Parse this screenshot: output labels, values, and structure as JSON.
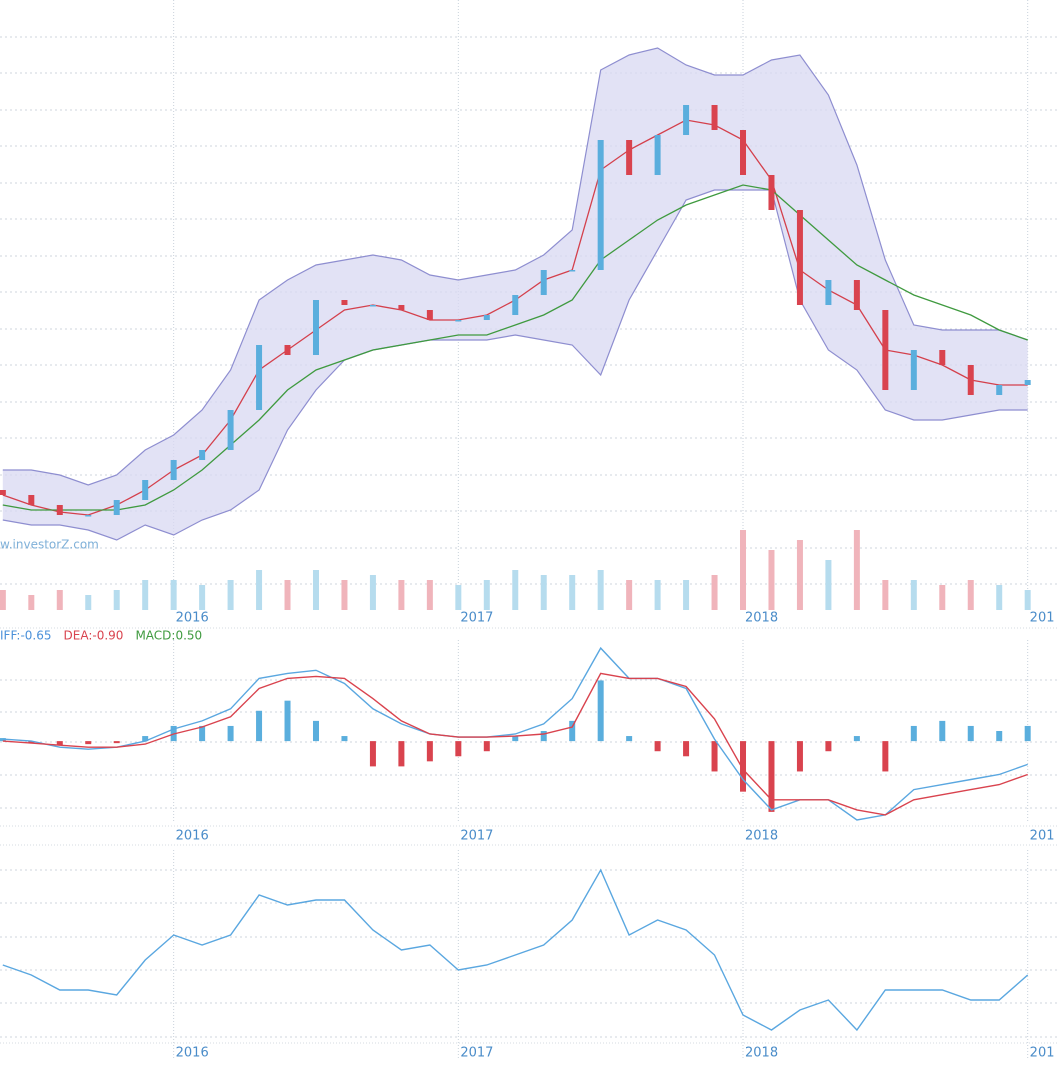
{
  "chart_data": [
    {
      "type": "candlestick",
      "watermark": "w.investorZ.com",
      "xlim": [
        2015.39,
        2019.11
      ],
      "xticks": [
        2016,
        2017,
        2018,
        {
          "value": 2019,
          "label": "201"
        }
      ],
      "ylim": [
        0,
        61
      ],
      "x": [
        2015.4,
        2015.5,
        2015.6,
        2015.7,
        2015.8,
        2015.9,
        2016.0,
        2016.1,
        2016.2,
        2016.3,
        2016.4,
        2016.5,
        2016.6,
        2016.7,
        2016.8,
        2016.9,
        2017.0,
        2017.1,
        2017.2,
        2017.3,
        2017.4,
        2017.5,
        2017.6,
        2017.7,
        2017.8,
        2017.9,
        2018.0,
        2018.1,
        2018.2,
        2018.3,
        2018.4,
        2018.5,
        2018.6,
        2018.7,
        2018.8,
        2018.9,
        2019.0
      ],
      "open": [
        12,
        11.5,
        10.5,
        9.5,
        9.5,
        11,
        13,
        15,
        16,
        20,
        26.5,
        25.5,
        31,
        30.5,
        30.5,
        30,
        29,
        29,
        29.5,
        31.5,
        34,
        34,
        47,
        43.5,
        47.5,
        50.5,
        48,
        43.5,
        40,
        30.5,
        33,
        30,
        22,
        26,
        24.5,
        21.5,
        22.5
      ],
      "close": [
        11.5,
        10.5,
        9.5,
        9.5,
        11,
        13,
        15,
        16,
        20,
        26.5,
        25.5,
        31,
        30.5,
        30.5,
        30,
        29,
        29,
        29.5,
        31.5,
        34,
        34,
        47,
        43.5,
        47.5,
        50.5,
        48,
        43.5,
        40,
        30.5,
        33,
        30,
        22,
        26,
        24.5,
        21.5,
        22.5,
        23
      ],
      "up_color": "#5aaedd",
      "down_color": "#d9434e",
      "bands": {
        "fill": "#d8d8f2",
        "stroke": "#8e8ed0",
        "upper": [
          14,
          14,
          13.5,
          12.5,
          13.5,
          16,
          17.5,
          20,
          24,
          31,
          33,
          34.5,
          35,
          35.5,
          35,
          33.5,
          33,
          33.5,
          34,
          35.5,
          38,
          54,
          55.5,
          56.2,
          54.5,
          53.5,
          53.5,
          55,
          55.5,
          51.5,
          44.5,
          35,
          28.5,
          28,
          28,
          28,
          27
        ],
        "lower": [
          9,
          8.5,
          8.5,
          8,
          7,
          8.5,
          7.5,
          9,
          10,
          12,
          18,
          22,
          25,
          26,
          26.5,
          27,
          27,
          27,
          27.5,
          27,
          26.5,
          23.5,
          31,
          36,
          41,
          42,
          42,
          42,
          31,
          26,
          24,
          20,
          19,
          19,
          19.5,
          20,
          20
        ]
      },
      "lines": [
        {
          "color": "#d4404c",
          "values": [
            11.5,
            10.5,
            9.8,
            9.5,
            10.5,
            12,
            14,
            15.5,
            19,
            24,
            26,
            28,
            30,
            30.5,
            30,
            29,
            29,
            29.5,
            31,
            33,
            34,
            44,
            46,
            47.5,
            49,
            48.5,
            47,
            43,
            34,
            32,
            30.5,
            26,
            25.5,
            24.5,
            23,
            22.5,
            22.5
          ]
        },
        {
          "color": "#3f9a3f",
          "values": [
            10.5,
            10,
            10,
            10,
            10,
            10.5,
            12,
            14,
            16.5,
            19,
            22,
            24,
            25,
            26,
            26.5,
            27,
            27.5,
            27.5,
            28.5,
            29.5,
            31,
            35,
            37,
            39,
            40.5,
            41.5,
            42.5,
            42,
            39.5,
            37,
            34.5,
            33,
            31.5,
            30.5,
            29.5,
            28,
            27
          ]
        }
      ],
      "volume": {
        "ylim": [
          0,
          13
        ],
        "up_color": "#b6dcee",
        "down_color": "#f0b4bb",
        "values": [
          2,
          1.5,
          2,
          1.5,
          2,
          3,
          3,
          2.5,
          3,
          4,
          3,
          4,
          3,
          3.5,
          3,
          3,
          2.5,
          3,
          4,
          3.5,
          3.5,
          4,
          3,
          3,
          3,
          3.5,
          8,
          6,
          7,
          5,
          8,
          3,
          3,
          2.5,
          3,
          2.5,
          2
        ]
      }
    },
    {
      "type": "macd",
      "legend": [
        {
          "text": "IFF:-0.65",
          "color": "#4a90d9"
        },
        {
          "text": "DEA:-0.90",
          "color": "#d9434e"
        },
        {
          "text": "MACD:0.50",
          "color": "#3f9a3f"
        }
      ],
      "xlim": [
        2015.39,
        2019.11
      ],
      "xticks": [
        2016,
        2017,
        2018,
        {
          "value": 2019,
          "label": "201"
        }
      ],
      "ylim": [
        -8,
        10
      ],
      "x": [
        2015.4,
        2015.5,
        2015.6,
        2015.7,
        2015.8,
        2015.9,
        2016.0,
        2016.1,
        2016.2,
        2016.3,
        2016.4,
        2016.5,
        2016.6,
        2016.7,
        2016.8,
        2016.9,
        2017.0,
        2017.1,
        2017.2,
        2017.3,
        2017.4,
        2017.5,
        2017.6,
        2017.7,
        2017.8,
        2017.9,
        2018.0,
        2018.1,
        2018.2,
        2018.3,
        2018.4,
        2018.5,
        2018.6,
        2018.7,
        2018.8,
        2018.9,
        2019.0
      ],
      "bars": {
        "up_color": "#5aaedd",
        "down_color": "#d9434e",
        "values": [
          0.3,
          -0.2,
          -0.4,
          -0.3,
          -0.2,
          0.5,
          1.5,
          1.5,
          1.5,
          3,
          4,
          2,
          0.5,
          -2.5,
          -2.5,
          -2,
          -1.5,
          -1,
          0.5,
          1,
          2,
          6,
          0.5,
          -1,
          -1.5,
          -3,
          -5,
          -7,
          -3,
          -1,
          0.5,
          -3,
          1.5,
          2,
          1.5,
          1,
          1.5
        ]
      },
      "series": [
        {
          "color": "#5aa7e0",
          "values": [
            0.2,
            0,
            -0.6,
            -0.8,
            -0.6,
            0,
            1.2,
            2,
            3.2,
            6.2,
            6.7,
            7,
            5.7,
            3.2,
            1.7,
            0.7,
            0.4,
            0.4,
            0.7,
            1.7,
            4.2,
            9.2,
            6.2,
            6.2,
            5.2,
            0.2,
            -3.8,
            -6.8,
            -5.8,
            -5.8,
            -7.8,
            -7.3,
            -4.8,
            -4.3,
            -3.8,
            -3.3,
            -2.3
          ]
        },
        {
          "color": "#d9434e",
          "values": [
            0,
            -0.2,
            -0.4,
            -0.6,
            -0.6,
            -0.3,
            0.7,
            1.4,
            2.4,
            5.2,
            6.2,
            6.4,
            6.2,
            4.2,
            2,
            0.7,
            0.4,
            0.4,
            0.5,
            0.7,
            1.4,
            6.7,
            6.2,
            6.2,
            5.4,
            2.2,
            -2.8,
            -5.8,
            -5.8,
            -5.8,
            -6.8,
            -7.3,
            -5.8,
            -5.3,
            -4.8,
            -4.3,
            -3.3
          ]
        }
      ]
    },
    {
      "type": "line",
      "xlim": [
        2015.39,
        2019.11
      ],
      "xticks": [
        2016,
        2017,
        2018,
        {
          "value": 2019,
          "label": "201"
        }
      ],
      "ylim": [
        0,
        21
      ],
      "x": [
        2015.4,
        2015.5,
        2015.6,
        2015.7,
        2015.8,
        2015.9,
        2016.0,
        2016.1,
        2016.2,
        2016.3,
        2016.4,
        2016.5,
        2016.6,
        2016.7,
        2016.8,
        2016.9,
        2017.0,
        2017.1,
        2017.2,
        2017.3,
        2017.4,
        2017.5,
        2017.6,
        2017.7,
        2017.8,
        2017.9,
        2018.0,
        2018.1,
        2018.2,
        2018.3,
        2018.4,
        2018.5,
        2018.6,
        2018.7,
        2018.8,
        2018.9,
        2019.0
      ],
      "color": "#5aa7e0",
      "values": [
        9.5,
        8.5,
        7,
        7,
        6.5,
        10,
        12.5,
        11.5,
        12.5,
        16.5,
        15.5,
        16,
        16,
        13,
        11,
        11.5,
        9,
        9.5,
        10.5,
        11.5,
        14,
        19,
        12.5,
        14,
        13,
        10.5,
        4.5,
        3,
        5,
        6,
        3,
        7,
        7,
        7,
        6,
        6,
        8.5
      ]
    }
  ]
}
